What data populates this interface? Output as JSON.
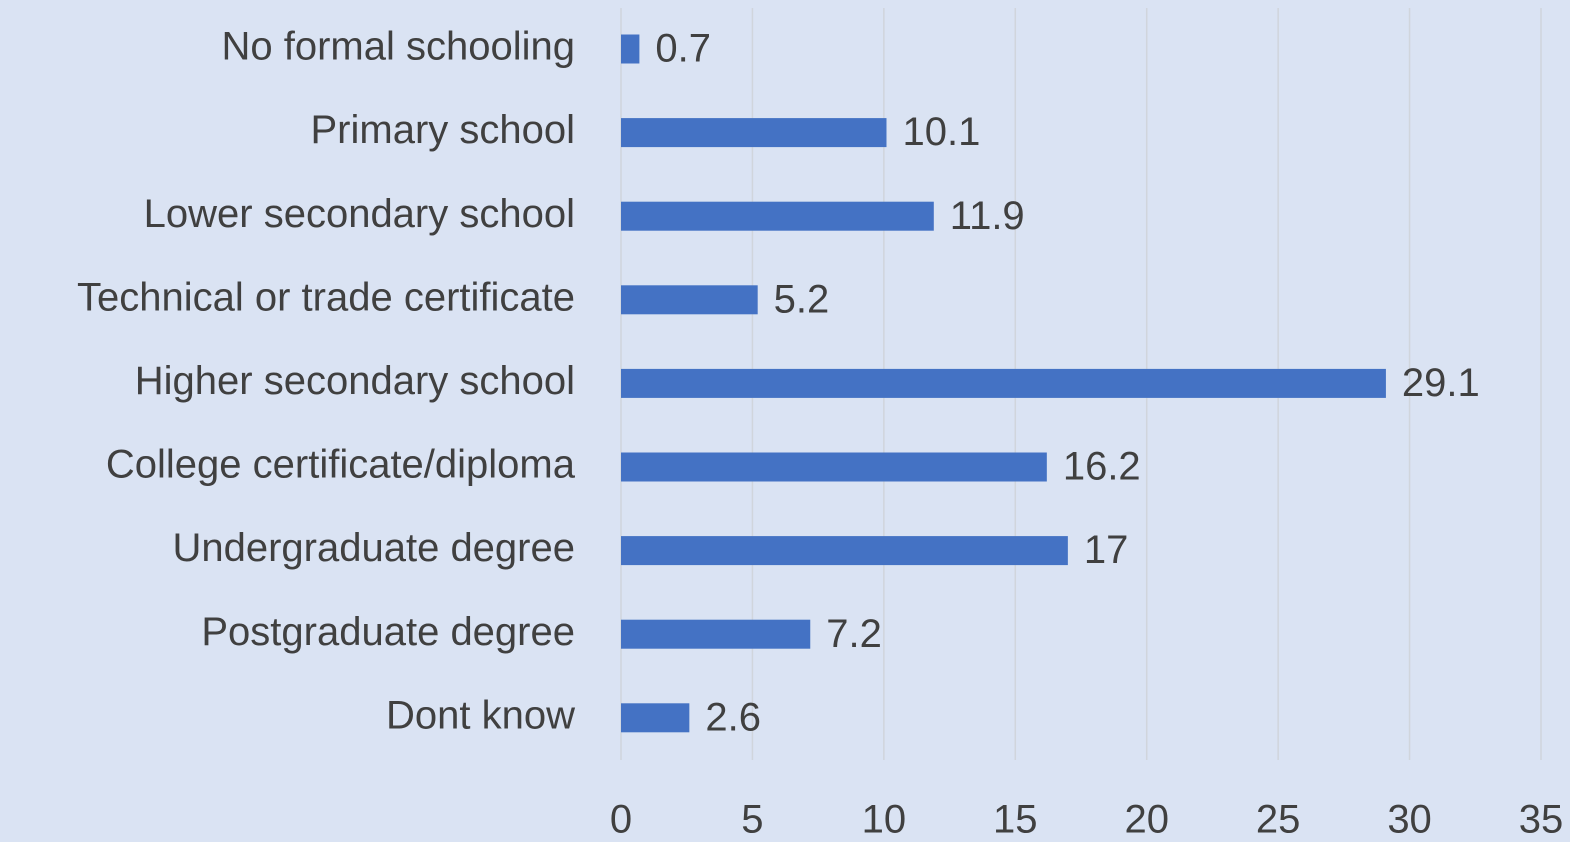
{
  "chart_data": {
    "type": "bar",
    "orientation": "horizontal",
    "categories": [
      "No formal schooling",
      "Primary school",
      "Lower secondary school",
      "Technical or trade certificate",
      "Higher secondary school",
      "College certificate/diploma",
      "Undergraduate degree",
      "Postgraduate degree",
      "Dont know"
    ],
    "values": [
      0.7,
      10.1,
      11.9,
      5.2,
      29.1,
      16.2,
      17,
      7.2,
      2.6
    ],
    "color": "#4472c4",
    "xlim": [
      0,
      35
    ],
    "xticks": [
      0,
      5,
      10,
      15,
      20,
      25,
      30,
      35
    ],
    "grid": true
  }
}
